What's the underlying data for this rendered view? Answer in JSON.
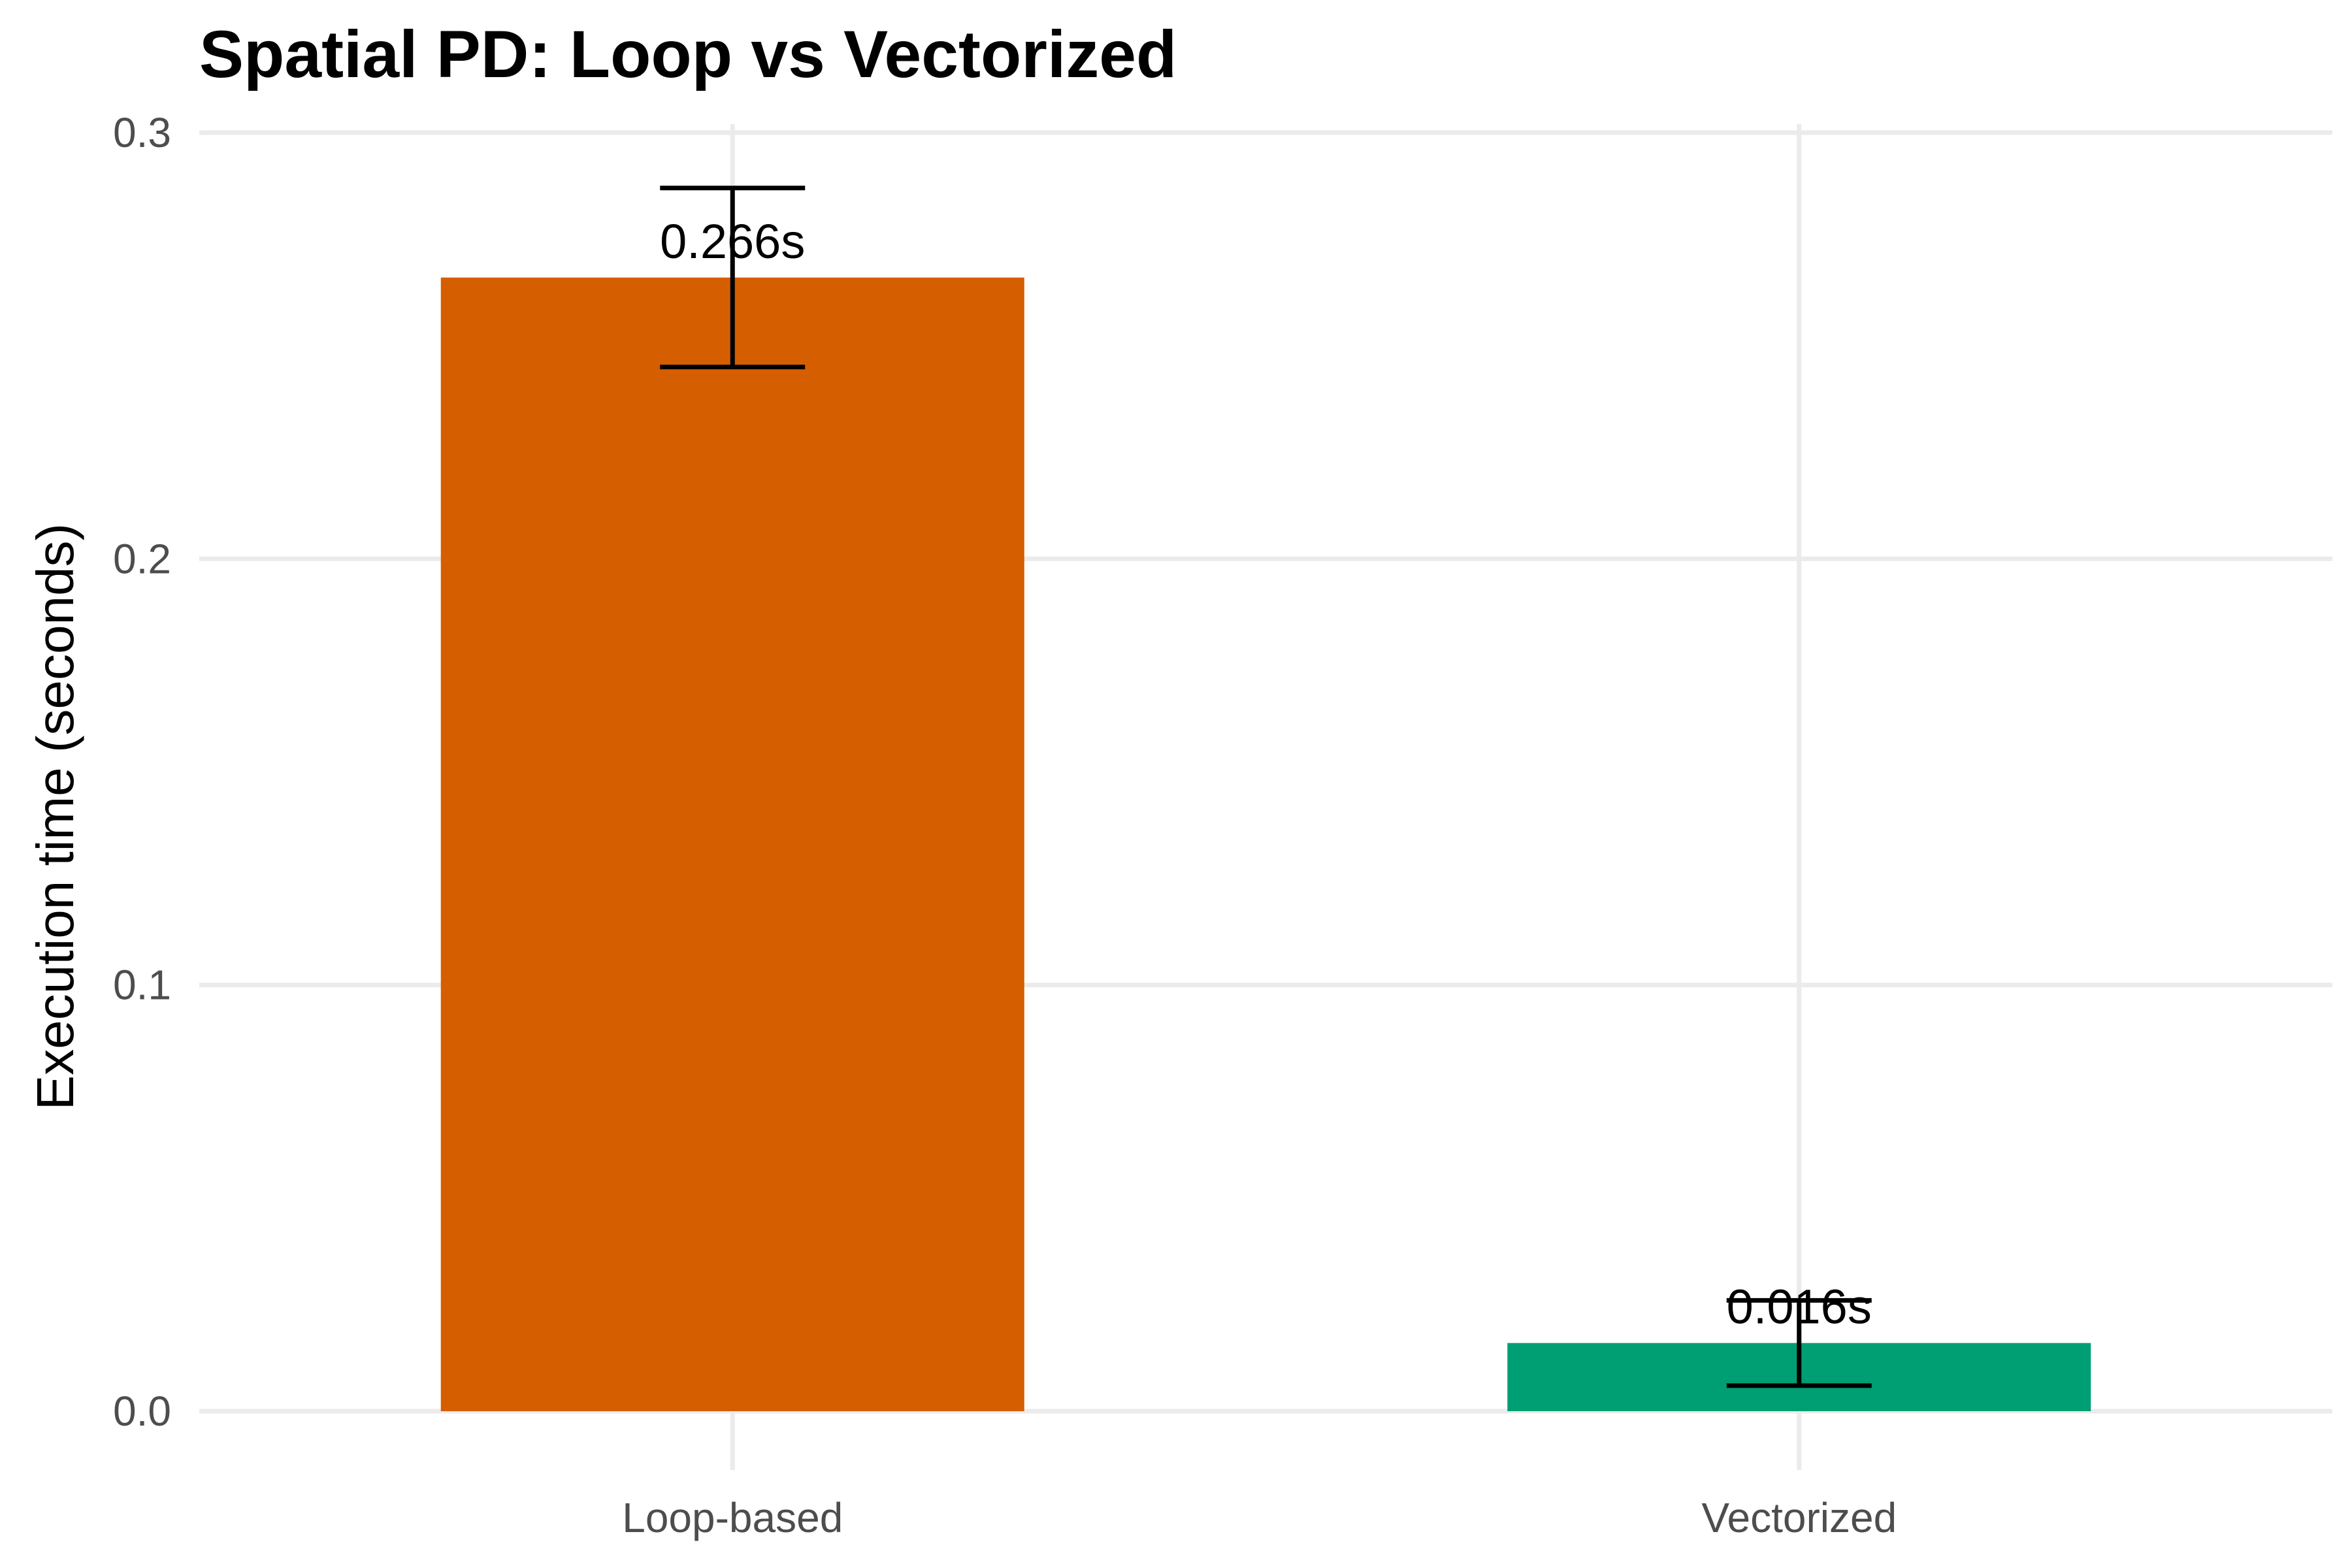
{
  "chart_data": {
    "type": "bar",
    "title": "Spatial PD: Loop vs Vectorized",
    "xlabel": "",
    "ylabel": "Execution time (seconds)",
    "categories": [
      "Loop-based",
      "Vectorized"
    ],
    "values": [
      0.266,
      0.016
    ],
    "error_low": [
      0.245,
      0.006
    ],
    "error_high": [
      0.287,
      0.026
    ],
    "data_labels": [
      "0.266s",
      "0.016s"
    ],
    "colors": [
      "#D55E00",
      "#009E73"
    ],
    "ylim": [
      0,
      0.3
    ],
    "yticks": [
      0,
      0.1,
      0.2,
      0.3
    ],
    "ytick_labels": [
      "0.0",
      "0.1",
      "0.2",
      "0.3"
    ],
    "grid": true,
    "legend": "none"
  }
}
